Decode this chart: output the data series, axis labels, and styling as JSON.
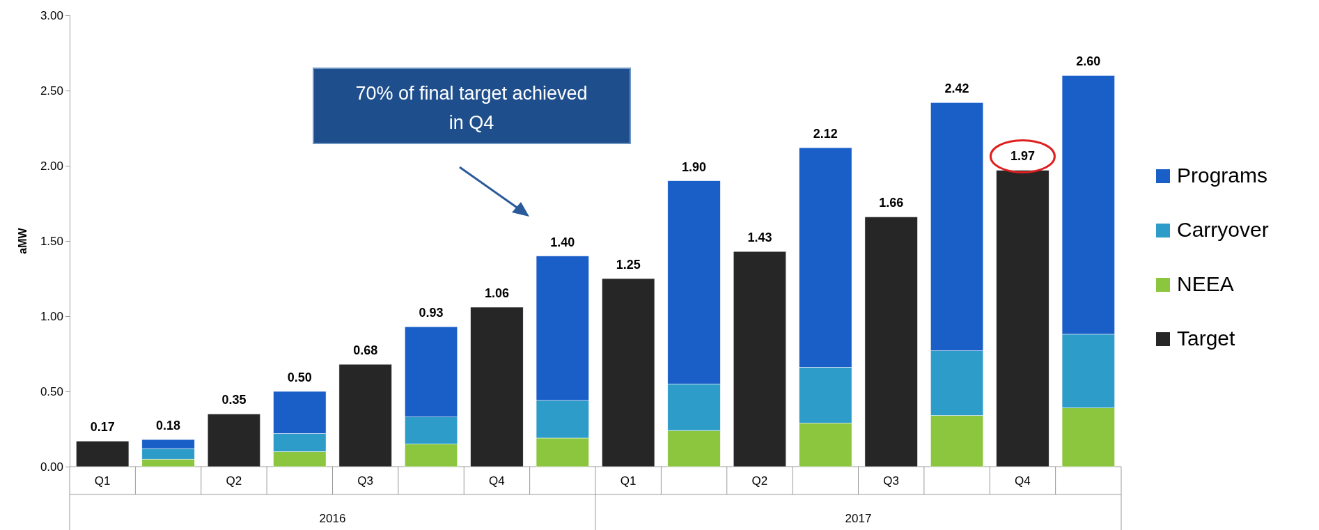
{
  "chart_data": {
    "type": "bar",
    "stacked": true,
    "ylabel": "aMW",
    "categories": [
      "Q1",
      null,
      "Q2",
      null,
      "Q3",
      null,
      "Q4",
      null,
      "Q1",
      null,
      "Q2",
      null,
      "Q3",
      null,
      "Q4",
      null
    ],
    "series": [
      {
        "name": "Target",
        "color": "#262626",
        "values": [
          0.17,
          null,
          0.35,
          null,
          0.68,
          null,
          1.06,
          null,
          1.25,
          null,
          1.43,
          null,
          1.66,
          null,
          1.97,
          null
        ]
      },
      {
        "name": "NEEA",
        "color": "#8cc63f",
        "values": [
          null,
          0.05,
          null,
          0.1,
          null,
          0.15,
          null,
          0.19,
          null,
          0.24,
          null,
          0.29,
          null,
          0.34,
          null,
          0.39
        ]
      },
      {
        "name": "Carryover",
        "color": "#2e9cc9",
        "values": [
          null,
          0.07,
          null,
          0.12,
          null,
          0.18,
          null,
          0.25,
          null,
          0.31,
          null,
          0.37,
          null,
          0.43,
          null,
          0.49
        ]
      },
      {
        "name": "Programs",
        "color": "#1a5fc8",
        "values": [
          null,
          0.06,
          null,
          0.28,
          null,
          0.6,
          null,
          0.96,
          null,
          1.35,
          null,
          1.46,
          null,
          1.65,
          null,
          1.72
        ]
      }
    ],
    "totals": [
      "0.17",
      "0.18",
      "0.35",
      "0.50",
      "0.68",
      "0.93",
      "1.06",
      "1.40",
      "1.25",
      "1.90",
      "1.43",
      "2.12",
      "1.66",
      "2.42",
      "1.97",
      "2.60"
    ],
    "ylim": [
      0,
      3
    ],
    "yticks": [
      {
        "value": 0,
        "label": "0.00"
      },
      {
        "value": 0.5,
        "label": "0.50"
      },
      {
        "value": 1,
        "label": "1.00"
      },
      {
        "value": 1.5,
        "label": "1.50"
      },
      {
        "value": 2,
        "label": "2.00"
      },
      {
        "value": 2.5,
        "label": "2.50"
      },
      {
        "value": 3,
        "label": "3.00"
      }
    ],
    "legend": "right",
    "annotations": [
      "70% of final target achieved in Q4",
      "2016",
      "2017"
    ]
  }
}
